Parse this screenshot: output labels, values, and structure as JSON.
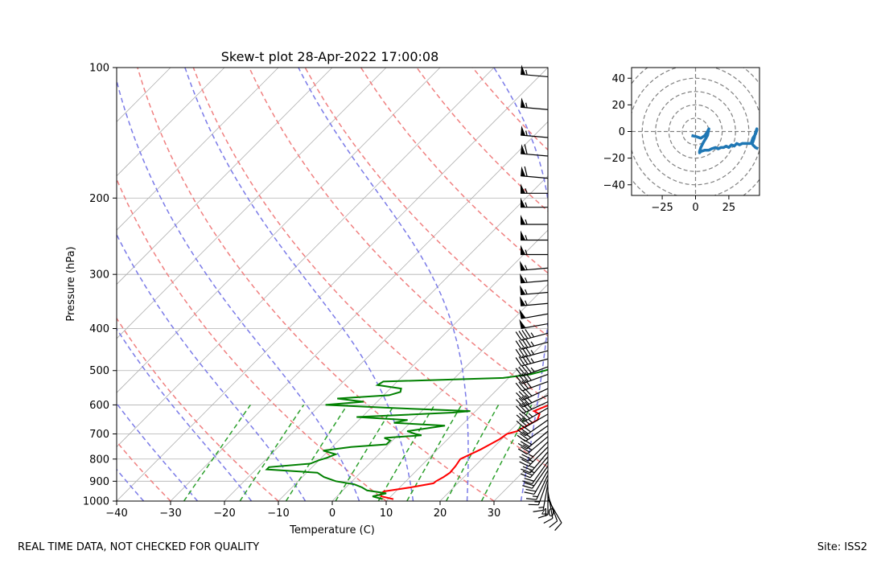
{
  "chart_data": [
    {
      "type": "skew-t",
      "title": "Skew-t plot 28-Apr-2022 17:00:08",
      "xlabel": "Temperature (C)",
      "ylabel": "Pressure (hPa)",
      "xlim": [
        -40,
        40
      ],
      "ylim": [
        1000,
        100
      ],
      "log_y": true,
      "xticks": [
        -40,
        -30,
        -20,
        -10,
        0,
        10,
        20,
        30,
        40
      ],
      "xtick_labels": [
        "−40",
        "−30",
        "−20",
        "−10",
        "0",
        "10",
        "20",
        "30",
        "40"
      ],
      "yticks": [
        100,
        200,
        300,
        400,
        500,
        600,
        700,
        800,
        900,
        1000
      ],
      "ytick_labels": [
        "100",
        "200",
        "300",
        "400",
        "500",
        "600",
        "700",
        "800",
        "900",
        "1000"
      ],
      "grid": true,
      "dry_adiabats_theta_C": [
        -30,
        -10,
        10,
        30,
        50,
        70,
        90,
        110,
        130,
        150
      ],
      "moist_adiabats_start_C": [
        -35,
        -25,
        -15,
        -5,
        5,
        15,
        25,
        35
      ],
      "mixing_ratio_lines_gkg": [
        0.4,
        1,
        2,
        4,
        7,
        10,
        16,
        24
      ],
      "series": [
        {
          "name": "Temperature",
          "color": "#ff0000",
          "pressure": [
            990,
            975,
            960,
            950,
            930,
            910,
            900,
            880,
            860,
            830,
            800,
            780,
            760,
            740,
            720,
            700,
            690,
            670,
            650,
            630,
            620,
            600,
            580,
            560,
            540,
            520,
            500,
            480,
            460,
            440,
            420,
            400,
            380,
            360,
            340,
            320,
            300,
            280,
            260,
            240,
            220,
            210,
            200,
            195,
            190,
            180,
            170,
            168,
            160,
            150,
            145,
            140,
            130,
            125,
            120,
            115,
            110,
            105,
            100
          ],
          "temp": [
            11.0,
            8.2,
            7.6,
            7.8,
            12.0,
            15.5,
            15.6,
            16.2,
            16.6,
            16.4,
            16.0,
            17.0,
            18.0,
            18.8,
            19.6,
            20.0,
            21.4,
            22.2,
            23.1,
            22.4,
            20.8,
            22.5,
            23.0,
            21.4,
            19.5,
            22.5,
            19.6,
            18.2,
            16.8,
            14.8,
            13.3,
            11.8,
            10.0,
            8.6,
            6.8,
            5.0,
            2.8,
            0.5,
            -1.9,
            -4.3,
            -7.4,
            -9.0,
            -11.3,
            -10.3,
            -7.8,
            -8.2,
            -8.0,
            -6.0,
            -2.1,
            -2.2,
            -0.6,
            0.0,
            -1.2,
            -0.4,
            -0.8,
            -1.0,
            -0.8,
            -2.2,
            -2.6
          ]
        },
        {
          "name": "Dewpoint",
          "color": "#008000",
          "pressure": [
            990,
            975,
            960,
            945,
            930,
            915,
            900,
            880,
            860,
            845,
            835,
            820,
            805,
            795,
            780,
            765,
            750,
            740,
            725,
            715,
            705,
            700,
            690,
            670,
            660,
            650,
            640,
            625,
            620,
            610,
            600,
            590,
            580,
            570,
            560,
            550,
            540,
            530,
            520,
            510,
            500,
            490,
            480,
            470,
            460,
            450,
            440,
            430,
            420,
            410,
            400,
            390,
            380,
            370,
            360,
            350,
            340,
            330,
            320,
            300,
            280,
            260,
            240,
            220,
            200,
            190,
            185,
            180,
            170,
            168,
            160,
            150,
            140,
            130,
            125,
            120,
            110,
            100
          ],
          "temp": [
            9.0,
            6.6,
            8.6,
            4.5,
            3.0,
            1.0,
            -3.0,
            -6.0,
            -8.0,
            -18.0,
            -18.0,
            -11.0,
            -10.0,
            -9.0,
            -8.0,
            -11.0,
            -6.5,
            -0.4,
            -0.4,
            -2.0,
            4.4,
            3.0,
            1.0,
            7.0,
            -3.0,
            -1.0,
            -11.0,
            6.0,
            9.0,
            -6.0,
            -19.0,
            -12.5,
            -18.0,
            -9.0,
            -7.5,
            -8.0,
            -13.0,
            -12.6,
            9.0,
            13.4,
            15.4,
            16.8,
            17.5,
            20.3,
            19.5,
            18.6,
            24.0,
            25.5,
            27.7,
            29.2,
            29.0,
            27.5,
            25.0,
            28.0,
            24.4,
            23.0,
            19.5,
            17.8,
            19.3,
            16.0,
            13.0,
            9.7,
            7.0,
            3.3,
            -0.4,
            -0.5,
            4.5,
            1.8,
            -10.3,
            -18.3,
            -16.0,
            -10.9,
            -6.9,
            -2.8,
            0.0,
            0.4,
            4.2,
            8.5
          ]
        }
      ],
      "wind_barbs": {
        "pressure": [
          105,
          125,
          145,
          160,
          180,
          195,
          210,
          230,
          250,
          270,
          290,
          310,
          330,
          350,
          370,
          390,
          410,
          430,
          450,
          470,
          490,
          510,
          530,
          550,
          570,
          590,
          610,
          630,
          650,
          670,
          690,
          710,
          730,
          750,
          770,
          790,
          810,
          830,
          850,
          870,
          890,
          910,
          930,
          950,
          970,
          990
        ],
        "speed_kt": [
          55,
          55,
          55,
          60,
          60,
          55,
          55,
          55,
          55,
          55,
          55,
          55,
          55,
          55,
          50,
          50,
          45,
          45,
          45,
          45,
          45,
          40,
          40,
          40,
          40,
          40,
          35,
          35,
          30,
          30,
          30,
          30,
          25,
          25,
          25,
          25,
          20,
          20,
          20,
          15,
          15,
          15,
          10,
          10,
          10,
          10
        ],
        "direction_deg": [
          275,
          275,
          275,
          275,
          275,
          270,
          270,
          270,
          270,
          270,
          265,
          265,
          265,
          265,
          260,
          260,
          255,
          255,
          255,
          255,
          250,
          250,
          250,
          245,
          245,
          245,
          240,
          240,
          235,
          235,
          230,
          230,
          225,
          225,
          220,
          220,
          215,
          215,
          210,
          205,
          200,
          190,
          180,
          170,
          160,
          150
        ]
      }
    },
    {
      "type": "hodograph",
      "xlim": [
        -48,
        48
      ],
      "ylim": [
        -48,
        48
      ],
      "xticks": [
        -25,
        0,
        25
      ],
      "xtick_labels": [
        "−25",
        "0",
        "25"
      ],
      "yticks": [
        -40,
        -20,
        0,
        20,
        40
      ],
      "ytick_labels": [
        "−40",
        "−20",
        "0",
        "20",
        "40"
      ],
      "rings": [
        10,
        20,
        30,
        40,
        50,
        60
      ],
      "line_color": "#1f77b4",
      "series": [
        {
          "u": [
            -3,
            1,
            4,
            7,
            9,
            10,
            9,
            6,
            4,
            3,
            3,
            4,
            7,
            10,
            12,
            15,
            17,
            19,
            21,
            23,
            25,
            27,
            29,
            31,
            33,
            35,
            37,
            39,
            41,
            43,
            44,
            45,
            46,
            46,
            45,
            43,
            42,
            43,
            45,
            47
          ],
          "v": [
            -3,
            -4,
            -5,
            -3,
            0,
            2,
            -3,
            -8,
            -12,
            -15,
            -16,
            -15,
            -14,
            -14,
            -13,
            -12,
            -13,
            -12,
            -12,
            -11,
            -12,
            -10,
            -11,
            -9,
            -10,
            -9,
            -9,
            -9,
            -9,
            -8,
            -5,
            -1,
            2,
            1,
            -2,
            -5,
            -8,
            -10,
            -12,
            -13
          ]
        }
      ]
    }
  ],
  "footer": {
    "left": "REAL TIME DATA, NOT CHECKED FOR QUALITY",
    "right": "Site: ISS2"
  }
}
